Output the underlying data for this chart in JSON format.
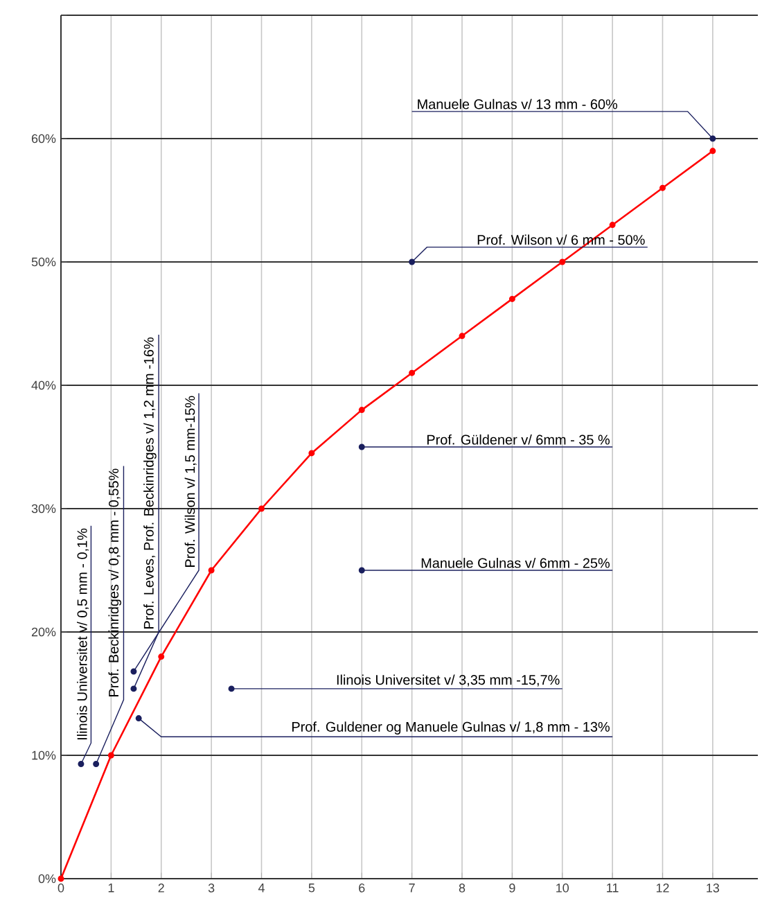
{
  "chart_data": {
    "type": "line",
    "xlim": [
      0,
      13.9
    ],
    "ylim": [
      0,
      70
    ],
    "xticks": [
      0,
      1,
      2,
      3,
      4,
      5,
      6,
      7,
      8,
      9,
      10,
      11,
      12,
      13
    ],
    "yticks": [
      {
        "value": 0,
        "label": "0%"
      },
      {
        "value": 10,
        "label": "10%"
      },
      {
        "value": 20,
        "label": "20%"
      },
      {
        "value": 30,
        "label": "30%"
      },
      {
        "value": 40,
        "label": "40%"
      },
      {
        "value": 50,
        "label": "50%"
      },
      {
        "value": 60,
        "label": "60%"
      },
      {
        "value": 70,
        "label": null
      }
    ],
    "grid": true,
    "marker": "circle",
    "series": [
      {
        "color": "#ff0000",
        "x": [
          0,
          1,
          2,
          3,
          4,
          5,
          6,
          7,
          8,
          9,
          10,
          11,
          12,
          13
        ],
        "values": [
          0,
          10,
          18,
          25,
          30,
          34.5,
          38,
          41,
          44,
          47,
          50,
          53,
          56,
          59
        ]
      },
      {
        "type": "scatter",
        "color": "#1a1f5e",
        "x": [
          0.4,
          0.7,
          1.45,
          1.45,
          1.55,
          3.4,
          6,
          6,
          7,
          13
        ],
        "values": [
          9.3,
          9.3,
          15.4,
          16.8,
          13,
          15.4,
          25,
          35,
          50,
          60
        ]
      }
    ],
    "annotations": [
      {
        "text": "Ilinois Universitet v/ 0,5 mm - 0,1%",
        "x": 0.4,
        "y": 9.3
      },
      {
        "text": "Prof. Beckinridges v/ 0,8 mm - 0,55%",
        "x": 0.7,
        "y": 9.3
      },
      {
        "text": "Prof. Leves, Prof. Beckinridges v/ 1,2 mm -16%",
        "x": 1.45,
        "y": 15.4
      },
      {
        "text": "Prof. Wilson v/ 1,5 mm-15%",
        "x": 1.45,
        "y": 16.8
      },
      {
        "text": "Prof. Guldener og Manuele Gulnas v/ 1,8 mm - 13%",
        "x": 1.55,
        "y": 13
      },
      {
        "text": "Ilinois Universitet v/ 3,35 mm -15,7%",
        "x": 3.4,
        "y": 15.4
      },
      {
        "text": "Manuele Gulnas v/ 6mm - 25%",
        "x": 6,
        "y": 25
      },
      {
        "text": "Prof. Güldener v/ 6mm - 35 %",
        "x": 6,
        "y": 35
      },
      {
        "text": "Prof. Wilson v/ 6 mm - 50%",
        "x": 7,
        "y": 50
      },
      {
        "text": "Manuele Gulnas v/ 13 mm - 60%",
        "x": 13,
        "y": 60
      }
    ]
  }
}
